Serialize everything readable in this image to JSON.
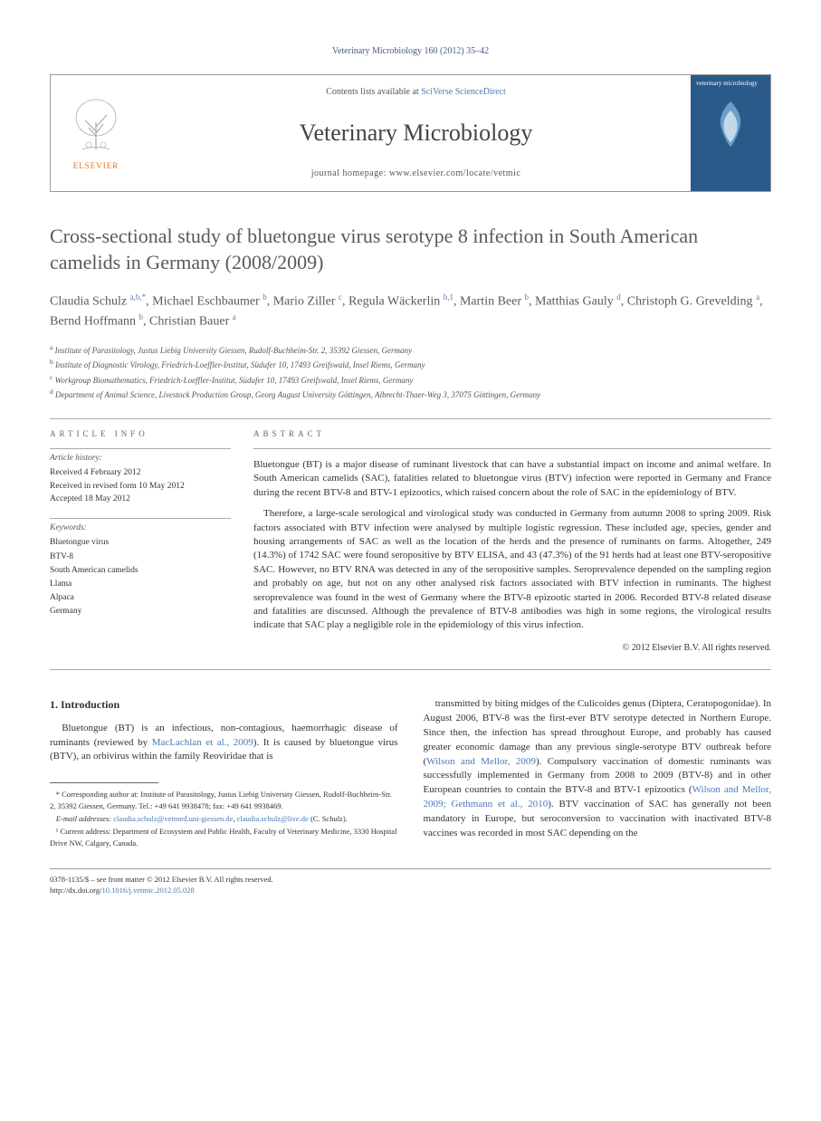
{
  "journal_ref": "Veterinary Microbiology 160 (2012) 35–42",
  "header": {
    "contents_prefix": "Contents lists available at ",
    "contents_link": "SciVerse ScienceDirect",
    "journal_name": "Veterinary Microbiology",
    "homepage_prefix": "journal homepage: ",
    "homepage_url": "www.elsevier.com/locate/vetmic",
    "elsevier_label": "ELSEVIER",
    "cover_label": "veterinary microbiology"
  },
  "title": "Cross-sectional study of bluetongue virus serotype 8 infection in South American camelids in Germany (2008/2009)",
  "authors_html": "Claudia Schulz <sup>a,b,*</sup>, Michael Eschbaumer <sup>b</sup>, Mario Ziller <sup>c</sup>, Regula Wäckerlin <sup>b,1</sup>, Martin Beer <sup>b</sup>, Matthias Gauly <sup>d</sup>, Christoph G. Grevelding <sup>a</sup>, Bernd Hoffmann <sup>b</sup>, Christian Bauer <sup>a</sup>",
  "affiliations": [
    {
      "sup": "a",
      "text": "Institute of Parasitology, Justus Liebig University Giessen, Rudolf-Buchheim-Str. 2, 35392 Giessen, Germany"
    },
    {
      "sup": "b",
      "text": "Institute of Diagnostic Virology, Friedrich-Loeffler-Institut, Südufer 10, 17493 Greifswald, Insel Riems, Germany"
    },
    {
      "sup": "c",
      "text": "Workgroup Biomathematics, Friedrich-Loeffler-Institut, Südufer 10, 17493 Greifswald, Insel Riems, Germany"
    },
    {
      "sup": "d",
      "text": "Department of Animal Science, Livestock Production Group, Georg August University Göttingen, Albrecht-Thaer-Weg 3, 37075 Göttingen, Germany"
    }
  ],
  "info": {
    "section_label": "ARTICLE INFO",
    "history_heading": "Article history:",
    "history": [
      "Received 4 February 2012",
      "Received in revised form 10 May 2012",
      "Accepted 18 May 2012"
    ],
    "keywords_heading": "Keywords:",
    "keywords": [
      "Bluetongue virus",
      "BTV-8",
      "South American camelids",
      "Llama",
      "Alpaca",
      "Germany"
    ]
  },
  "abstract": {
    "section_label": "ABSTRACT",
    "paragraphs": [
      "Bluetongue (BT) is a major disease of ruminant livestock that can have a substantial impact on income and animal welfare. In South American camelids (SAC), fatalities related to bluetongue virus (BTV) infection were reported in Germany and France during the recent BTV-8 and BTV-1 epizootics, which raised concern about the role of SAC in the epidemiology of BTV.",
      "Therefore, a large-scale serological and virological study was conducted in Germany from autumn 2008 to spring 2009. Risk factors associated with BTV infection were analysed by multiple logistic regression. These included age, species, gender and housing arrangements of SAC as well as the location of the herds and the presence of ruminants on farms. Altogether, 249 (14.3%) of 1742 SAC were found seropositive by BTV ELISA, and 43 (47.3%) of the 91 herds had at least one BTV-seropositive SAC. However, no BTV RNA was detected in any of the seropositive samples. Seroprevalence depended on the sampling region and probably on age, but not on any other analysed risk factors associated with BTV infection in ruminants. The highest seroprevalence was found in the west of Germany where the BTV-8 epizootic started in 2006. Recorded BTV-8 related disease and fatalities are discussed. Although the prevalence of BTV-8 antibodies was high in some regions, the virological results indicate that SAC play a negligible role in the epidemiology of this virus infection."
    ],
    "copyright": "© 2012 Elsevier B.V. All rights reserved."
  },
  "body": {
    "intro_heading": "1. Introduction",
    "col1_p1_pre": "Bluetongue (BT) is an infectious, non-contagious, haemorrhagic disease of ruminants (reviewed by ",
    "col1_p1_ref": "MacLachlan et al., 2009",
    "col1_p1_post": "). It is caused by bluetongue virus (BTV), an orbivirus within the family Reoviridae that is",
    "col2_p1_a": "transmitted by biting midges of the Culicoides genus (Diptera, Ceratopogonidae). In August 2006, BTV-8 was the first-ever BTV serotype detected in Northern Europe. Since then, the infection has spread throughout Europe, and probably has caused greater economic damage than any previous single-serotype BTV outbreak before (",
    "col2_ref1": "Wilson and Mellor, 2009",
    "col2_p1_b": "). Compulsory vaccination of domestic ruminants was successfully implemented in Germany from 2008 to 2009 (BTV-8) and in other European countries to contain the BTV-8 and BTV-1 epizootics (",
    "col2_ref2": "Wilson and Mellor, 2009; Gethmann et al., 2010",
    "col2_p1_c": "). BTV vaccination of SAC has generally not been mandatory in Europe, but seroconversion to vaccination with inactivated BTV-8 vaccines was recorded in most SAC depending on the"
  },
  "footnotes": {
    "corr": "* Corresponding author at: Institute of Parasitology, Justus Liebig University Giessen, Rudolf-Buchheim-Str. 2, 35392 Giessen, Germany. Tel.: +49 641 9938478; fax: +49 641 9938469.",
    "email_label": "E-mail addresses: ",
    "email1": "claudia.schulz@vetmed.uni-giessen.de",
    "email_sep": ", ",
    "email2": "claudia.schulz@live.de",
    "email_suffix": " (C. Schulz).",
    "note1": "¹ Current address: Department of Ecosystem and Public Health, Faculty of Veterinary Medicine, 3330 Hospital Drive NW, Calgary, Canada."
  },
  "bottom": {
    "issn": "0378-1135/$ – see front matter © 2012 Elsevier B.V. All rights reserved.",
    "doi_label": "http://dx.doi.org/",
    "doi": "10.1016/j.vetmic.2012.05.028"
  },
  "colors": {
    "link": "#4a7ab8",
    "orange": "#e8721a",
    "cover_bg": "#2a5a8a",
    "title_gray": "#5a5a5a",
    "rule": "#999999"
  }
}
